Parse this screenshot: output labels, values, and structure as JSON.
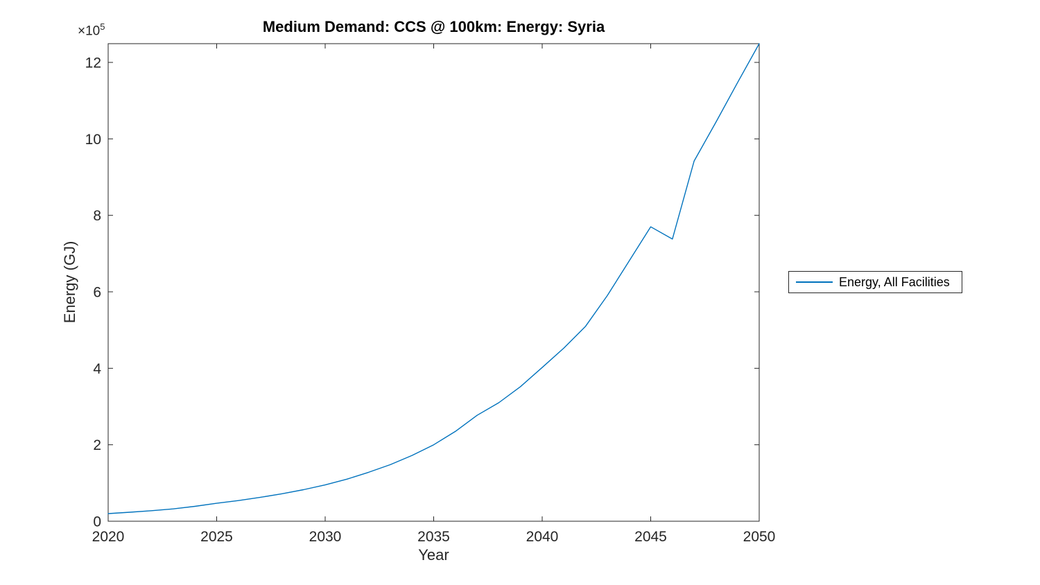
{
  "figure": {
    "background": "#ffffff",
    "axis_color": "#262626"
  },
  "chart_data": {
    "type": "line",
    "title": "Medium Demand: CCS @ 100km: Energy: Syria",
    "xlabel": "Year",
    "ylabel": "Energy (GJ)",
    "y_multiplier_base": "×10",
    "y_multiplier_exp": "5",
    "grid": false,
    "box": true,
    "xlim": [
      2020,
      2050
    ],
    "ylim": [
      0,
      1249000
    ],
    "xticks": {
      "values": [
        2020,
        2025,
        2030,
        2035,
        2040,
        2045,
        2050
      ],
      "labels": [
        "2020",
        "2025",
        "2030",
        "2035",
        "2040",
        "2045",
        "2050"
      ]
    },
    "yticks": {
      "values": [
        0,
        200000,
        400000,
        600000,
        800000,
        1000000,
        1200000
      ],
      "labels": [
        "0",
        "2",
        "4",
        "6",
        "8",
        "10",
        "12"
      ]
    },
    "x": [
      2020,
      2021,
      2022,
      2023,
      2024,
      2025,
      2026,
      2027,
      2028,
      2029,
      2030,
      2031,
      2032,
      2033,
      2034,
      2035,
      2036,
      2037,
      2038,
      2039,
      2040,
      2041,
      2042,
      2043,
      2044,
      2045,
      2046,
      2047,
      2048,
      2049,
      2050
    ],
    "series": [
      {
        "name": "Energy, All Facilities",
        "color": "#0072bd",
        "values": [
          20000,
          23600,
          27600,
          32300,
          39000,
          47000,
          54100,
          62300,
          71700,
          82500,
          95000,
          110000,
          128000,
          148000,
          172000,
          200000,
          235000,
          277000,
          310000,
          352000,
          402000,
          453000,
          510000,
          590000,
          680000,
          770000,
          738000,
          942000,
          1043000,
          1147000,
          1249000
        ]
      }
    ],
    "legend": {
      "position": "right-outside",
      "entries": [
        {
          "label": "Energy, All Facilities",
          "color": "#0072bd"
        }
      ]
    }
  }
}
